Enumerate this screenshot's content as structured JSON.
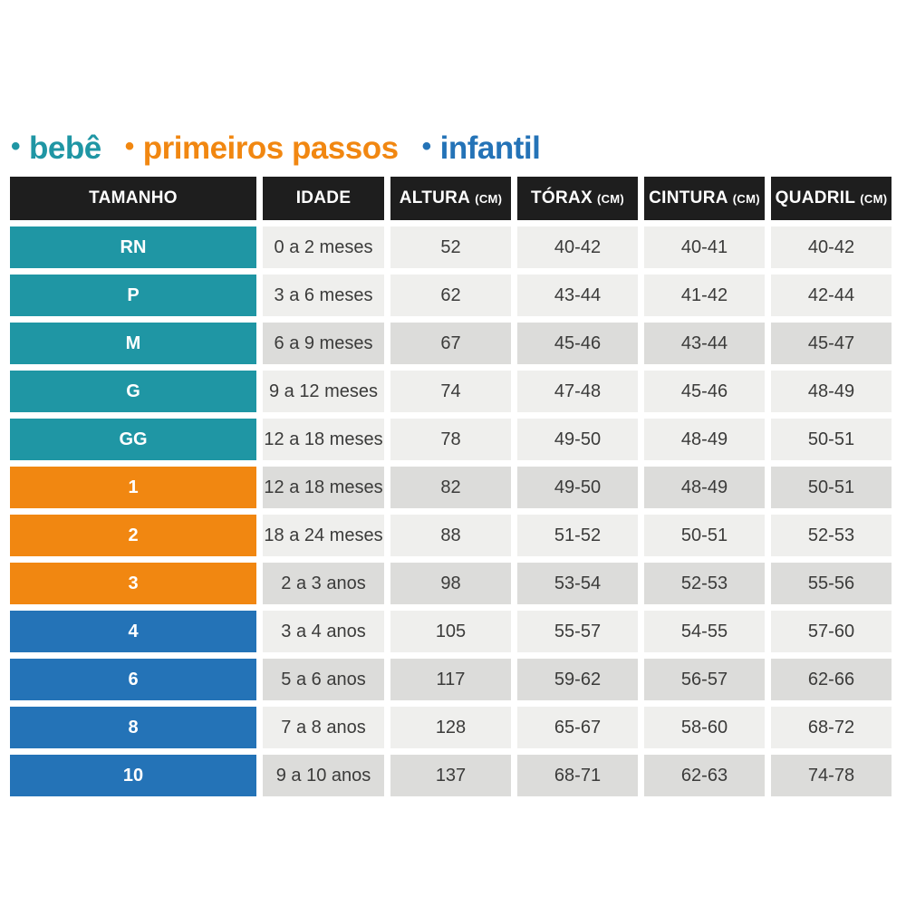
{
  "colors": {
    "background": "#ffffff",
    "header_bg": "#1e1e1e",
    "header_text": "#ffffff",
    "cell_light": "#efefed",
    "cell_dark": "#dcdcda",
    "cell_text": "#3b3b3a",
    "size_text": "#ffffff",
    "bebe": "#1f96a4",
    "primeiros_passos": "#f18711",
    "infantil": "#2473b7"
  },
  "legend": {
    "bullet": "•",
    "items": [
      {
        "label": "bebê",
        "color_key": "bebe"
      },
      {
        "label": "primeiros passos",
        "color_key": "primeiros_passos"
      },
      {
        "label": "infantil",
        "color_key": "infantil"
      }
    ]
  },
  "table": {
    "headers": [
      {
        "label": "TAMANHO",
        "unit": ""
      },
      {
        "label": "IDADE",
        "unit": ""
      },
      {
        "label": "ALTURA",
        "unit": "(CM)"
      },
      {
        "label": "TÓRAX",
        "unit": "(CM)"
      },
      {
        "label": "CINTURA",
        "unit": "(CM)"
      },
      {
        "label": "QUADRIL",
        "unit": "(CM)"
      }
    ],
    "rows": [
      {
        "size": "RN",
        "group": "bebe",
        "shade": "light",
        "cells": [
          "0 a 2 meses",
          "52",
          "40-42",
          "40-41",
          "40-42"
        ]
      },
      {
        "size": "P",
        "group": "bebe",
        "shade": "light",
        "cells": [
          "3 a 6 meses",
          "62",
          "43-44",
          "41-42",
          "42-44"
        ]
      },
      {
        "size": "M",
        "group": "bebe",
        "shade": "dark",
        "cells": [
          "6 a 9 meses",
          "67",
          "45-46",
          "43-44",
          "45-47"
        ]
      },
      {
        "size": "G",
        "group": "bebe",
        "shade": "light",
        "cells": [
          "9 a 12 meses",
          "74",
          "47-48",
          "45-46",
          "48-49"
        ]
      },
      {
        "size": "GG",
        "group": "bebe",
        "shade": "light",
        "cells": [
          "12 a 18 meses",
          "78",
          "49-50",
          "48-49",
          "50-51"
        ]
      },
      {
        "size": "1",
        "group": "primeiros_passos",
        "shade": "dark",
        "cells": [
          "12 a 18 meses",
          "82",
          "49-50",
          "48-49",
          "50-51"
        ]
      },
      {
        "size": "2",
        "group": "primeiros_passos",
        "shade": "light",
        "cells": [
          "18 a 24 meses",
          "88",
          "51-52",
          "50-51",
          "52-53"
        ]
      },
      {
        "size": "3",
        "group": "primeiros_passos",
        "shade": "dark",
        "cells": [
          "2 a 3 anos",
          "98",
          "53-54",
          "52-53",
          "55-56"
        ]
      },
      {
        "size": "4",
        "group": "infantil",
        "shade": "light",
        "cells": [
          "3 a 4 anos",
          "105",
          "55-57",
          "54-55",
          "57-60"
        ]
      },
      {
        "size": "6",
        "group": "infantil",
        "shade": "dark",
        "cells": [
          "5 a 6 anos",
          "117",
          "59-62",
          "56-57",
          "62-66"
        ]
      },
      {
        "size": "8",
        "group": "infantil",
        "shade": "light",
        "cells": [
          "7 a 8 anos",
          "128",
          "65-67",
          "58-60",
          "68-72"
        ]
      },
      {
        "size": "10",
        "group": "infantil",
        "shade": "dark",
        "cells": [
          "9 a 10 anos",
          "137",
          "68-71",
          "62-63",
          "74-78"
        ]
      }
    ]
  },
  "chart_data": {
    "type": "table",
    "title": "",
    "columns": [
      "TAMANHO",
      "IDADE",
      "ALTURA (CM)",
      "TÓRAX (CM)",
      "CINTURA (CM)",
      "QUADRIL (CM)"
    ],
    "rows": [
      [
        "RN",
        "0 a 2 meses",
        "52",
        "40-42",
        "40-41",
        "40-42"
      ],
      [
        "P",
        "3 a 6 meses",
        "62",
        "43-44",
        "41-42",
        "42-44"
      ],
      [
        "M",
        "6 a 9 meses",
        "67",
        "45-46",
        "43-44",
        "45-47"
      ],
      [
        "G",
        "9 a 12 meses",
        "74",
        "47-48",
        "45-46",
        "48-49"
      ],
      [
        "GG",
        "12 a 18 meses",
        "78",
        "49-50",
        "48-49",
        "50-51"
      ],
      [
        "1",
        "12 a 18 meses",
        "82",
        "49-50",
        "48-49",
        "50-51"
      ],
      [
        "2",
        "18 a 24 meses",
        "88",
        "51-52",
        "50-51",
        "52-53"
      ],
      [
        "3",
        "2 a 3 anos",
        "98",
        "53-54",
        "52-53",
        "55-56"
      ],
      [
        "4",
        "3 a 4 anos",
        "105",
        "55-57",
        "54-55",
        "57-60"
      ],
      [
        "6",
        "5 a 6 anos",
        "117",
        "59-62",
        "56-57",
        "62-66"
      ],
      [
        "8",
        "7 a 8 anos",
        "128",
        "65-67",
        "58-60",
        "68-72"
      ],
      [
        "10",
        "9 a 10 anos",
        "137",
        "68-71",
        "62-63",
        "74-78"
      ]
    ],
    "legend": [
      "bebê",
      "primeiros passos",
      "infantil"
    ],
    "groups": {
      "bebê": [
        "RN",
        "P",
        "M",
        "G",
        "GG"
      ],
      "primeiros passos": [
        "1",
        "2",
        "3"
      ],
      "infantil": [
        "4",
        "6",
        "8",
        "10"
      ]
    }
  }
}
